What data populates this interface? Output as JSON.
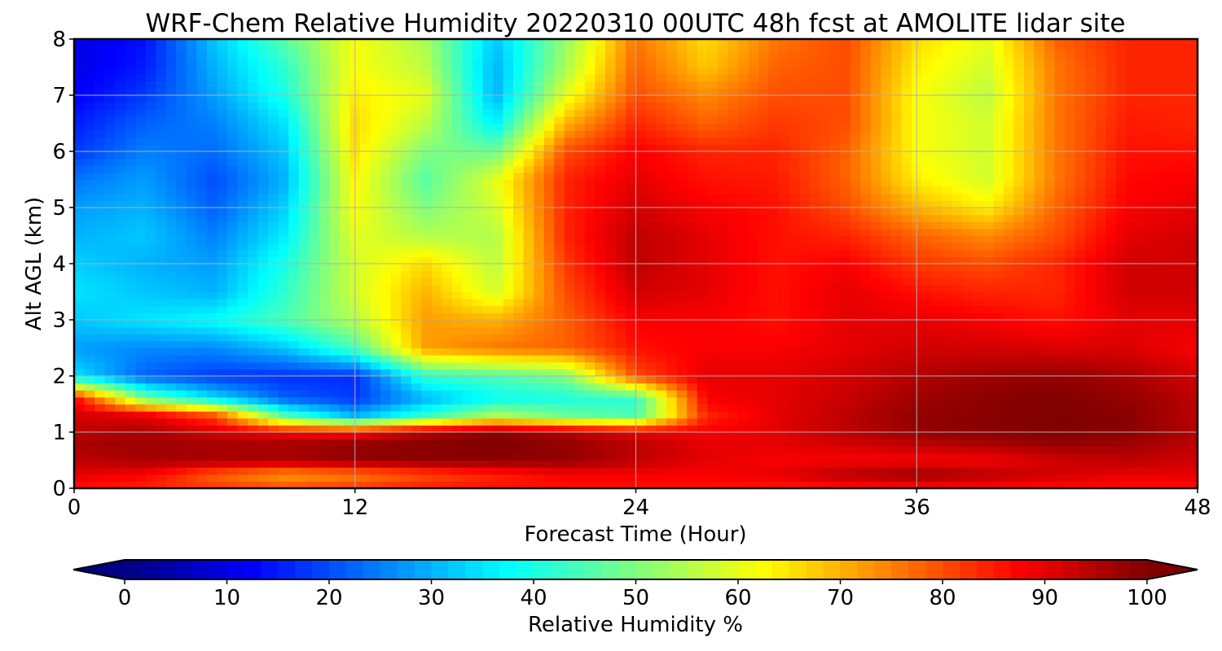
{
  "chart_data": {
    "type": "heatmap",
    "title": "WRF-Chem Relative Humidity 20220310 00UTC 48h fcst at AMOLITE lidar site",
    "xlabel": "Forecast Time (Hour)",
    "ylabel": "Alt AGL (km)",
    "xlim": [
      0,
      48
    ],
    "ylim": [
      0,
      8
    ],
    "xticks": [
      "0",
      "12",
      "24",
      "36",
      "48"
    ],
    "yticks": [
      "0",
      "1",
      "2",
      "3",
      "4",
      "5",
      "6",
      "7",
      "8"
    ],
    "grid": true,
    "colorbar": {
      "label": "Relative Humidity %",
      "range": [
        0,
        100
      ],
      "extend": "both",
      "ticks": [
        "0",
        "10",
        "20",
        "30",
        "40",
        "50",
        "60",
        "70",
        "80",
        "90",
        "100"
      ],
      "colormap": "jet"
    },
    "x": [
      0,
      3,
      6,
      9,
      12,
      15,
      18,
      21,
      24,
      27,
      30,
      33,
      36,
      39,
      42,
      45,
      48
    ],
    "y": [
      0,
      0.25,
      0.5,
      0.8,
      1.0,
      1.3,
      1.6,
      2.0,
      2.5,
      3.0,
      3.5,
      4.0,
      4.5,
      5.0,
      5.5,
      6.0,
      6.5,
      7.0,
      7.5,
      8.0
    ],
    "z": [
      [
        86,
        84,
        82,
        80,
        82,
        85,
        86,
        86,
        86,
        86,
        85,
        85,
        86,
        86,
        86,
        86,
        86
      ],
      [
        90,
        88,
        78,
        72,
        75,
        80,
        84,
        88,
        88,
        88,
        90,
        95,
        98,
        95,
        92,
        90,
        90
      ],
      [
        94,
        96,
        96,
        96,
        98,
        99,
        99,
        98,
        94,
        90,
        88,
        88,
        88,
        88,
        92,
        94,
        92
      ],
      [
        96,
        97,
        96,
        96,
        98,
        99,
        100,
        98,
        94,
        90,
        90,
        92,
        94,
        96,
        98,
        97,
        94
      ],
      [
        94,
        96,
        92,
        88,
        86,
        95,
        99,
        95,
        90,
        88,
        90,
        94,
        98,
        99,
        100,
        99,
        95
      ],
      [
        92,
        90,
        80,
        45,
        30,
        42,
        55,
        48,
        45,
        84,
        90,
        94,
        98,
        99,
        100,
        99,
        94
      ],
      [
        88,
        50,
        35,
        22,
        18,
        30,
        38,
        40,
        42,
        88,
        90,
        93,
        97,
        99,
        100,
        98,
        94
      ],
      [
        35,
        22,
        18,
        17,
        17,
        42,
        45,
        50,
        80,
        90,
        90,
        92,
        95,
        97,
        98,
        96,
        92
      ],
      [
        28,
        26,
        26,
        32,
        45,
        72,
        76,
        78,
        86,
        88,
        88,
        90,
        92,
        92,
        91,
        91,
        88
      ],
      [
        32,
        35,
        38,
        45,
        55,
        72,
        70,
        78,
        88,
        88,
        86,
        90,
        90,
        88,
        86,
        90,
        90
      ],
      [
        35,
        32,
        30,
        42,
        58,
        70,
        58,
        80,
        92,
        90,
        86,
        90,
        86,
        84,
        84,
        92,
        92
      ],
      [
        33,
        30,
        28,
        40,
        58,
        66,
        56,
        82,
        94,
        90,
        86,
        88,
        82,
        80,
        84,
        92,
        92
      ],
      [
        30,
        32,
        25,
        36,
        60,
        55,
        55,
        84,
        94,
        90,
        86,
        84,
        78,
        74,
        80,
        90,
        92
      ],
      [
        28,
        30,
        22,
        33,
        62,
        50,
        58,
        84,
        92,
        88,
        86,
        80,
        70,
        64,
        78,
        88,
        90
      ],
      [
        24,
        28,
        20,
        30,
        63,
        46,
        60,
        84,
        90,
        86,
        85,
        78,
        64,
        58,
        76,
        87,
        88
      ],
      [
        18,
        25,
        23,
        32,
        65,
        50,
        48,
        80,
        88,
        84,
        84,
        78,
        62,
        58,
        76,
        86,
        86
      ],
      [
        15,
        22,
        25,
        35,
        66,
        56,
        36,
        70,
        84,
        78,
        82,
        80,
        62,
        58,
        76,
        85,
        84
      ],
      [
        12,
        18,
        28,
        40,
        64,
        60,
        30,
        60,
        80,
        74,
        80,
        80,
        62,
        56,
        76,
        84,
        84
      ],
      [
        10,
        15,
        30,
        42,
        62,
        56,
        30,
        54,
        78,
        68,
        78,
        80,
        64,
        58,
        76,
        84,
        84
      ],
      [
        10,
        14,
        32,
        46,
        62,
        54,
        32,
        52,
        76,
        66,
        76,
        80,
        66,
        60,
        78,
        84,
        84
      ]
    ]
  }
}
